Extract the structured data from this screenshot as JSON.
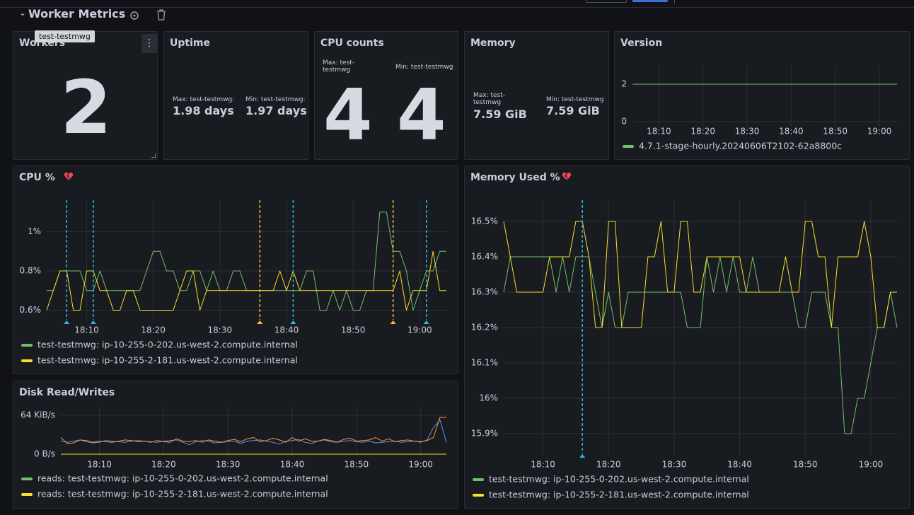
{
  "header": {
    "title": "Worker Metrics"
  },
  "stats": {
    "workers": {
      "title": "Workers",
      "tooltip": "test-testmwg",
      "value": 2
    },
    "uptime": {
      "title": "Uptime",
      "items": [
        {
          "label": "Max: test-testmwg:",
          "value": "1.98 days"
        },
        {
          "label": "Min: test-testmwg:",
          "value": "1.97 days"
        }
      ]
    },
    "cpu_counts": {
      "title": "CPU counts",
      "items": [
        {
          "label": "Max: test-testmwg",
          "value": 4
        },
        {
          "label": "Min: test-testmwg",
          "value": 4
        }
      ]
    },
    "memory": {
      "title": "Memory",
      "items": [
        {
          "label": "Max: test-testmwg",
          "value": "7.59 GiB"
        },
        {
          "label": "Min: test-testmwg",
          "value": "7.59 GiB"
        }
      ]
    }
  },
  "chart_data": [
    {
      "type": "line",
      "title": "Version",
      "x": [
        "18:04",
        "19:04"
      ],
      "xlim": [
        "18:04",
        "19:04"
      ],
      "xticks": [
        "18:10",
        "18:20",
        "18:30",
        "18:40",
        "18:50",
        "19:00"
      ],
      "ylim": [
        -0.3,
        2.98
      ],
      "yticks": [
        0,
        2
      ],
      "grid": true,
      "legend": "bottom",
      "series": [
        {
          "name": "4.7.1-stage-hourly.20240606T2102-62a8800c",
          "color": "#73bf69",
          "values": [
            2,
            2
          ]
        }
      ]
    },
    {
      "type": "line",
      "title": "CPU %",
      "x": [
        "18:04",
        "18:05",
        "18:06",
        "18:07",
        "18:08",
        "18:09",
        "18:10",
        "18:11",
        "18:12",
        "18:13",
        "18:14",
        "18:15",
        "18:16",
        "18:17",
        "18:18",
        "18:19",
        "18:20",
        "18:21",
        "18:22",
        "18:23",
        "18:24",
        "18:25",
        "18:26",
        "18:27",
        "18:28",
        "18:29",
        "18:30",
        "18:31",
        "18:32",
        "18:33",
        "18:34",
        "18:35",
        "18:36",
        "18:37",
        "18:38",
        "18:39",
        "18:40",
        "18:41",
        "18:42",
        "18:43",
        "18:44",
        "18:45",
        "18:46",
        "18:47",
        "18:48",
        "18:49",
        "18:50",
        "18:51",
        "18:52",
        "18:53",
        "18:54",
        "18:55",
        "18:56",
        "18:57",
        "18:58",
        "18:59",
        "19:00",
        "19:01",
        "19:02",
        "19:03",
        "19:04"
      ],
      "xlim": [
        "18:04",
        "19:04"
      ],
      "xticks": [
        "18:10",
        "18:20",
        "18:30",
        "18:40",
        "18:50",
        "19:00"
      ],
      "ylim": [
        0.537,
        1.16
      ],
      "yticks": [
        {
          "value": 0.6,
          "label": "0.6%"
        },
        {
          "value": 0.8,
          "label": "0.8%"
        },
        {
          "value": 1,
          "label": "1%"
        }
      ],
      "grid": true,
      "legend": "bottom",
      "annotations": [
        {
          "x": "18:07",
          "color": "#33b5e5"
        },
        {
          "x": "18:11",
          "color": "#33b5e5"
        },
        {
          "x": "18:36",
          "color": "#f2c037"
        },
        {
          "x": "18:41",
          "color": "#33b5e5"
        },
        {
          "x": "18:56",
          "color": "#f2c037"
        },
        {
          "x": "19:01",
          "color": "#33b5e5"
        }
      ],
      "series": [
        {
          "name": "test-testmwg: ip-10-255-0-202.us-west-2.compute.internal",
          "color": "#73bf69",
          "values": [
            0.7,
            0.7,
            0.8,
            0.8,
            0.8,
            0.8,
            0.7,
            0.7,
            0.8,
            0.7,
            0.7,
            0.7,
            0.7,
            0.7,
            0.7,
            0.8,
            0.9,
            0.9,
            0.8,
            0.8,
            0.7,
            0.7,
            0.8,
            0.8,
            0.7,
            0.8,
            0.7,
            0.7,
            0.8,
            0.8,
            0.7,
            0.7,
            0.7,
            0.7,
            0.7,
            0.7,
            0.7,
            0.7,
            0.7,
            0.8,
            0.8,
            0.6,
            0.6,
            0.7,
            0.6,
            0.7,
            0.6,
            0.6,
            0.7,
            0.7,
            1.1,
            1.1,
            0.9,
            0.9,
            0.8,
            0.6,
            0.7,
            0.8,
            0.8,
            0.9,
            0.9
          ]
        },
        {
          "name": "test-testmwg: ip-10-255-2-181.us-west-2.compute.internal",
          "color": "#fade2a",
          "values": [
            0.6,
            0.7,
            0.8,
            0.8,
            0.6,
            0.6,
            0.8,
            0.8,
            0.7,
            0.7,
            0.6,
            0.6,
            0.7,
            0.7,
            0.6,
            0.6,
            0.6,
            0.6,
            0.6,
            0.6,
            0.7,
            0.8,
            0.8,
            0.6,
            0.7,
            0.7,
            0.7,
            0.7,
            0.7,
            0.7,
            0.7,
            0.7,
            0.7,
            0.7,
            0.7,
            0.8,
            0.7,
            0.8,
            0.7,
            0.7,
            0.7,
            0.7,
            0.7,
            0.7,
            0.7,
            0.7,
            0.7,
            0.7,
            0.7,
            0.7,
            0.7,
            0.7,
            0.7,
            0.8,
            0.6,
            0.7,
            0.7,
            0.7,
            0.9,
            0.7,
            0.7
          ]
        }
      ]
    },
    {
      "type": "line",
      "title": "Memory Used %",
      "x": [
        "18:04",
        "18:05",
        "18:06",
        "18:07",
        "18:08",
        "18:09",
        "18:10",
        "18:11",
        "18:12",
        "18:13",
        "18:14",
        "18:15",
        "18:16",
        "18:17",
        "18:18",
        "18:19",
        "18:20",
        "18:21",
        "18:22",
        "18:23",
        "18:24",
        "18:25",
        "18:26",
        "18:27",
        "18:28",
        "18:29",
        "18:30",
        "18:31",
        "18:32",
        "18:33",
        "18:34",
        "18:35",
        "18:36",
        "18:37",
        "18:38",
        "18:39",
        "18:40",
        "18:41",
        "18:42",
        "18:43",
        "18:44",
        "18:45",
        "18:46",
        "18:47",
        "18:48",
        "18:49",
        "18:50",
        "18:51",
        "18:52",
        "18:53",
        "18:54",
        "18:55",
        "18:56",
        "18:57",
        "18:58",
        "18:59",
        "19:00",
        "19:01",
        "19:02",
        "19:03",
        "19:04"
      ],
      "xlim": [
        "18:04",
        "19:04"
      ],
      "xticks": [
        "18:10",
        "18:20",
        "18:30",
        "18:40",
        "18:50",
        "19:00"
      ],
      "ylim": [
        15.836,
        16.56
      ],
      "yticks": [
        {
          "value": 15.9,
          "label": "15.9%"
        },
        {
          "value": 16,
          "label": "16%"
        },
        {
          "value": 16.1,
          "label": "16.1%"
        },
        {
          "value": 16.2,
          "label": "16.2%"
        },
        {
          "value": 16.3,
          "label": "16.3%"
        },
        {
          "value": 16.4,
          "label": "16.4%"
        },
        {
          "value": 16.5,
          "label": "16.5%"
        }
      ],
      "grid": true,
      "legend": "bottom",
      "annotations": [
        {
          "x": "18:16",
          "color": "#33b5e5"
        }
      ],
      "series": [
        {
          "name": "test-testmwg: ip-10-255-0-202.us-west-2.compute.internal",
          "color": "#73bf69",
          "values": [
            16.3,
            16.4,
            16.4,
            16.4,
            16.4,
            16.4,
            16.4,
            16.4,
            16.3,
            16.4,
            16.3,
            16.4,
            16.4,
            16.4,
            16.3,
            16.2,
            16.3,
            16.2,
            16.2,
            16.3,
            16.3,
            16.3,
            16.3,
            16.3,
            16.3,
            16.3,
            16.3,
            16.3,
            16.2,
            16.2,
            16.2,
            16.4,
            16.3,
            16.4,
            16.3,
            16.4,
            16.3,
            16.3,
            16.4,
            16.3,
            16.3,
            16.3,
            16.3,
            16.3,
            16.3,
            16.2,
            16.2,
            16.3,
            16.3,
            16.3,
            16.2,
            16.2,
            15.9,
            15.9,
            16.0,
            16.0,
            16.1,
            16.2,
            16.2,
            16.3,
            16.2
          ]
        },
        {
          "name": "test-testmwg: ip-10-255-2-181.us-west-2.compute.internal",
          "color": "#fade2a",
          "values": [
            16.5,
            16.4,
            16.3,
            16.3,
            16.3,
            16.3,
            16.3,
            16.4,
            16.4,
            16.4,
            16.4,
            16.5,
            16.5,
            16.4,
            16.2,
            16.2,
            16.5,
            16.5,
            16.2,
            16.2,
            16.2,
            16.2,
            16.4,
            16.4,
            16.5,
            16.3,
            16.3,
            16.5,
            16.5,
            16.3,
            16.3,
            16.4,
            16.4,
            16.4,
            16.4,
            16.4,
            16.4,
            16.3,
            16.3,
            16.3,
            16.3,
            16.3,
            16.3,
            16.4,
            16.3,
            16.3,
            16.5,
            16.5,
            16.4,
            16.4,
            16.2,
            16.4,
            16.4,
            16.4,
            16.4,
            16.5,
            16.4,
            16.2,
            16.2,
            16.3,
            16.3
          ]
        }
      ]
    },
    {
      "type": "line",
      "title": "Disk Read/Writes",
      "x": [
        "18:04",
        "18:05",
        "18:06",
        "18:07",
        "18:08",
        "18:09",
        "18:10",
        "18:11",
        "18:12",
        "18:13",
        "18:14",
        "18:15",
        "18:16",
        "18:17",
        "18:18",
        "18:19",
        "18:20",
        "18:21",
        "18:22",
        "18:23",
        "18:24",
        "18:25",
        "18:26",
        "18:27",
        "18:28",
        "18:29",
        "18:30",
        "18:31",
        "18:32",
        "18:33",
        "18:34",
        "18:35",
        "18:36",
        "18:37",
        "18:38",
        "18:39",
        "18:40",
        "18:41",
        "18:42",
        "18:43",
        "18:44",
        "18:45",
        "18:46",
        "18:47",
        "18:48",
        "18:49",
        "18:50",
        "18:51",
        "18:52",
        "18:53",
        "18:54",
        "18:55",
        "18:56",
        "18:57",
        "18:58",
        "18:59",
        "19:00",
        "19:01",
        "19:02",
        "19:03",
        "19:04"
      ],
      "xlim": [
        "18:04",
        "19:04"
      ],
      "xticks": [
        "18:10",
        "18:20",
        "18:30",
        "18:40",
        "18:50",
        "19:00"
      ],
      "ylim": [
        -3600,
        80000
      ],
      "yticks": [
        {
          "value": 0,
          "label": "0 B/s"
        },
        {
          "value": 65536,
          "label": "64 KiB/s"
        }
      ],
      "grid": true,
      "legend": "bottom",
      "series": [
        {
          "color": "#5794f2",
          "values": [
            22000,
            20000,
            22000,
            24000,
            21000,
            19000,
            20000,
            23000,
            22000,
            21000,
            20000,
            22000,
            23000,
            22000,
            21000,
            20000,
            22000,
            23000,
            24000,
            20000,
            16000,
            21000,
            23000,
            22000,
            19000,
            20000,
            21000,
            22000,
            18000,
            22000,
            23000,
            24000,
            22000,
            20000,
            17000,
            22000,
            23000,
            25000,
            20000,
            18000,
            22000,
            24000,
            21000,
            20000,
            22000,
            23000,
            21000,
            20000,
            22000,
            19000,
            20000,
            21000,
            22000,
            20000,
            21000,
            22000,
            20000,
            24000,
            45000,
            58000,
            20000
          ]
        },
        {
          "color": "#ff9830",
          "values": [
            28000,
            18000,
            19000,
            24000,
            23000,
            20000,
            22000,
            21000,
            20000,
            22000,
            24000,
            23000,
            21000,
            22000,
            20000,
            23000,
            21000,
            20000,
            26000,
            22000,
            21000,
            23000,
            20000,
            24000,
            22000,
            20000,
            23000,
            25000,
            21000,
            26000,
            28000,
            21000,
            23000,
            27000,
            24000,
            20000,
            28000,
            22000,
            26000,
            22000,
            22000,
            25000,
            23000,
            20000,
            25000,
            27000,
            22000,
            23000,
            24000,
            28000,
            22000,
            26000,
            21000,
            23000,
            24000,
            22000,
            21000,
            23000,
            28000,
            62000,
            62000
          ]
        },
        {
          "name": "reads: test-testmwg: ip-10-255-0-202.us-west-2.compute.internal",
          "color": "#73bf69",
          "values": [
            0,
            0,
            0,
            0,
            0,
            0,
            0,
            0,
            0,
            0,
            0,
            0,
            0,
            0,
            0,
            0,
            0,
            0,
            0,
            0,
            0,
            0,
            0,
            0,
            0,
            0,
            0,
            0,
            0,
            0,
            0,
            0,
            0,
            0,
            0,
            0,
            0,
            0,
            0,
            0,
            0,
            0,
            0,
            0,
            0,
            0,
            0,
            0,
            0,
            0,
            0,
            0,
            0,
            0,
            0,
            0,
            0,
            0,
            0,
            0,
            0
          ]
        },
        {
          "name": "reads: test-testmwg: ip-10-255-2-181.us-west-2.compute.internal",
          "color": "#fade2a",
          "values": [
            0,
            0,
            0,
            0,
            0,
            0,
            0,
            0,
            0,
            0,
            0,
            0,
            0,
            0,
            0,
            0,
            0,
            0,
            0,
            0,
            0,
            0,
            0,
            0,
            0,
            0,
            0,
            0,
            0,
            0,
            0,
            0,
            0,
            0,
            0,
            0,
            0,
            0,
            0,
            0,
            0,
            0,
            0,
            0,
            0,
            0,
            0,
            0,
            0,
            0,
            0,
            0,
            0,
            0,
            0,
            0,
            0,
            0,
            0,
            0,
            0
          ]
        }
      ]
    }
  ]
}
